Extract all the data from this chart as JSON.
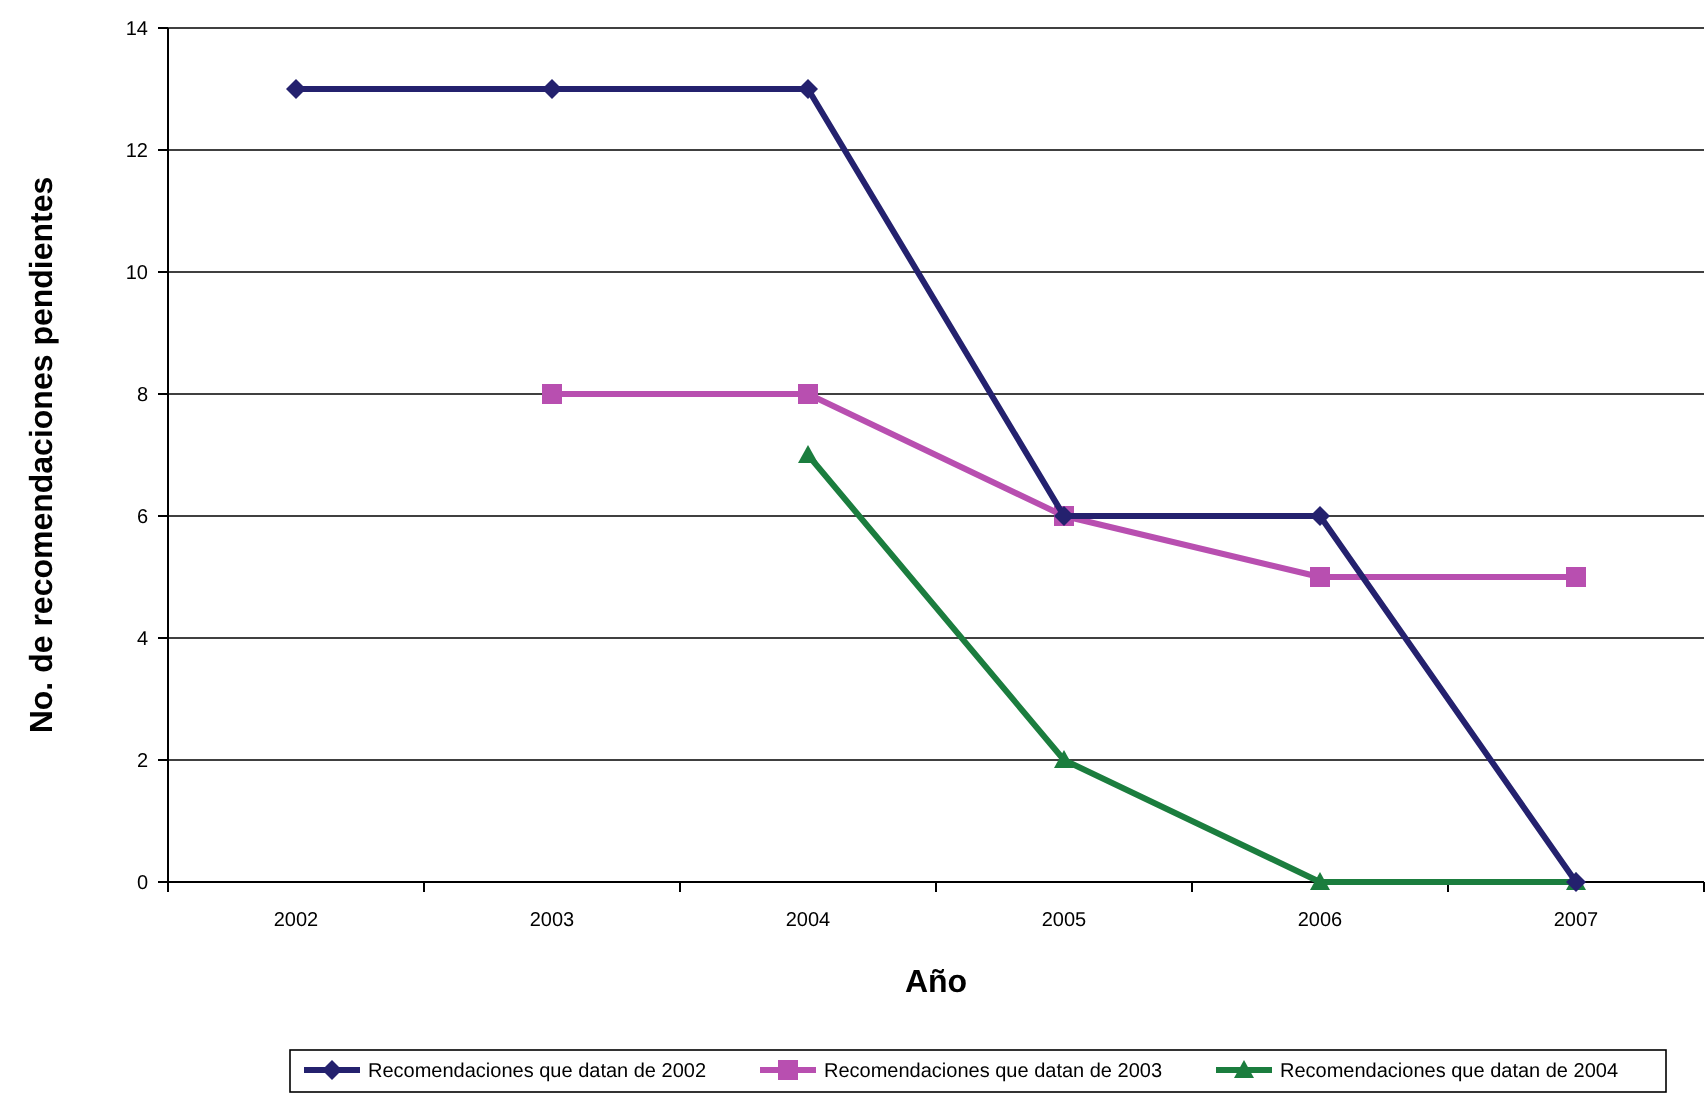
{
  "chart_data": {
    "type": "line",
    "xlabel": "Año",
    "ylabel": "No. de  recomendaciones pendientes",
    "categories": [
      "2002",
      "2003",
      "2004",
      "2005",
      "2006",
      "2007"
    ],
    "series": [
      {
        "name": "Recomendaciones que datan de 2002",
        "color": "#24216e",
        "marker": "diamond",
        "values": [
          13,
          13,
          13,
          6,
          6,
          0
        ]
      },
      {
        "name": "Recomendaciones que datan de 2003",
        "color": "#b84fb0",
        "marker": "square",
        "values": [
          null,
          8,
          8,
          6,
          5,
          5
        ]
      },
      {
        "name": "Recomendaciones que datan de 2004",
        "color": "#1b7d3e",
        "marker": "triangle",
        "values": [
          null,
          null,
          7,
          2,
          0,
          0
        ]
      }
    ],
    "ylim": [
      0,
      14
    ],
    "yticks": [
      0,
      2,
      4,
      6,
      8,
      10,
      12,
      14
    ],
    "grid": "y",
    "legend": "bottom"
  }
}
